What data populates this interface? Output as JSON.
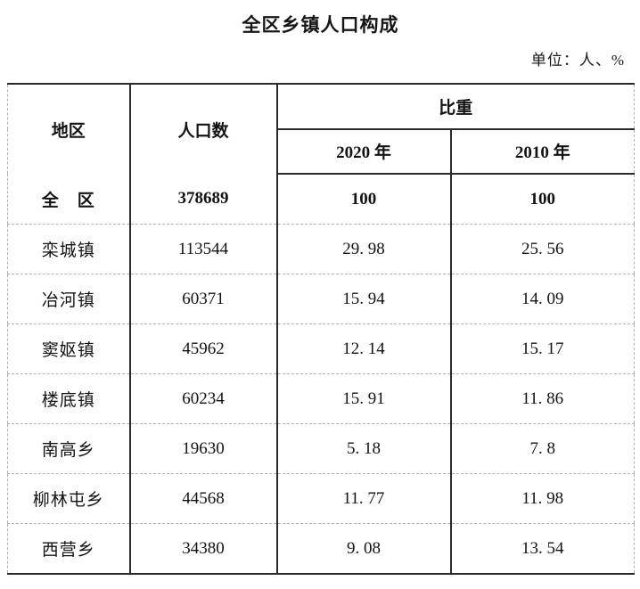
{
  "page": {
    "title": "全区乡镇人口构成",
    "unit_label": "单位：人、%"
  },
  "table": {
    "headers": {
      "region": "地区",
      "population": "人口数",
      "proportion": "比重",
      "year_2020": "2020 年",
      "year_2010": "2010 年"
    },
    "rows": [
      {
        "region": "全　区",
        "population": "378689",
        "p2020": "100",
        "p2010": "100",
        "bold": true
      },
      {
        "region": "栾城镇",
        "population": "113544",
        "p2020": "29. 98",
        "p2010": "25. 56",
        "bold": false
      },
      {
        "region": "冶河镇",
        "population": "60371",
        "p2020": "15. 94",
        "p2010": "14. 09",
        "bold": false
      },
      {
        "region": "窦妪镇",
        "population": "45962",
        "p2020": "12. 14",
        "p2010": "15. 17",
        "bold": false
      },
      {
        "region": "楼底镇",
        "population": "60234",
        "p2020": "15. 91",
        "p2010": "11. 86",
        "bold": false
      },
      {
        "region": "南高乡",
        "population": "19630",
        "p2020": "5. 18",
        "p2010": "7. 8",
        "bold": false
      },
      {
        "region": "柳林屯乡",
        "population": "44568",
        "p2020": "11. 77",
        "p2010": "11. 98",
        "bold": false
      },
      {
        "region": "西营乡",
        "population": "34380",
        "p2020": "9. 08",
        "p2010": "13. 54",
        "bold": false
      }
    ]
  },
  "colors": {
    "solid_border": "#2a2a2a",
    "dashed_border": "#b3b3b3",
    "text": "#131313",
    "background": "#ffffff"
  },
  "chart_data": {
    "type": "table",
    "title": "全区乡镇人口构成",
    "unit": "单位：人、%",
    "columns": [
      "地区",
      "人口数",
      "比重 2020 年",
      "比重 2010 年"
    ],
    "records": [
      [
        "全区",
        378689,
        100,
        100
      ],
      [
        "栾城镇",
        113544,
        29.98,
        25.56
      ],
      [
        "冶河镇",
        60371,
        15.94,
        14.09
      ],
      [
        "窦妪镇",
        45962,
        12.14,
        15.17
      ],
      [
        "楼底镇",
        60234,
        15.91,
        11.86
      ],
      [
        "南高乡",
        19630,
        5.18,
        7.8
      ],
      [
        "柳林屯乡",
        44568,
        11.77,
        11.98
      ],
      [
        "西营乡",
        34380,
        9.08,
        13.54
      ]
    ]
  }
}
